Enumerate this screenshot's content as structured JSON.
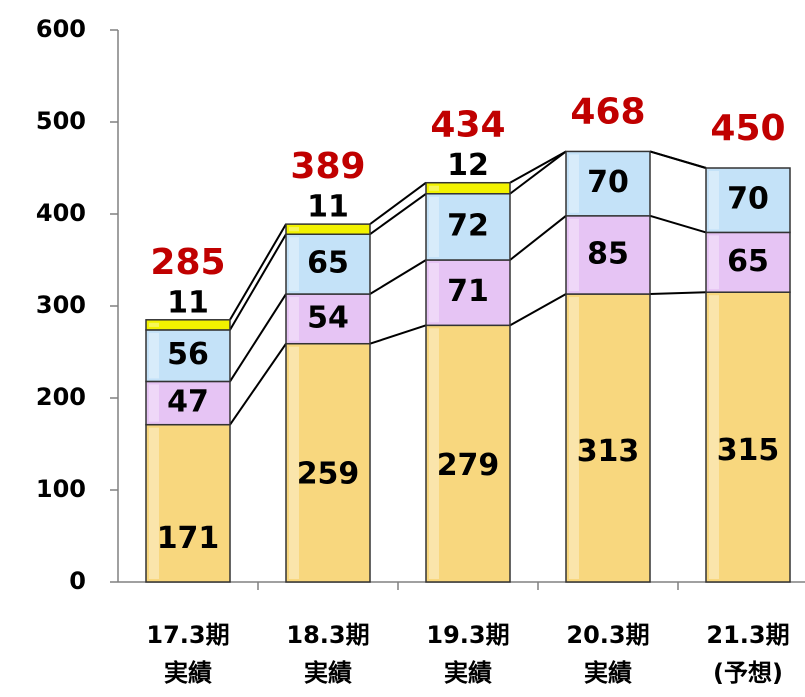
{
  "chart_data": {
    "type": "stacked_bar",
    "categories": [
      [
        "17.3期",
        "実績"
      ],
      [
        "18.3期",
        "実績"
      ],
      [
        "19.3期",
        "実績"
      ],
      [
        "20.3期",
        "実績"
      ],
      [
        "21.3期",
        "(予想)"
      ]
    ],
    "series": [
      {
        "color": "#f8d77e",
        "values": [
          171,
          259,
          279,
          313,
          315
        ]
      },
      {
        "color": "#e6c4f4",
        "values": [
          47,
          54,
          71,
          85,
          65
        ]
      },
      {
        "color": "#c4e2f8",
        "values": [
          56,
          65,
          72,
          70,
          70
        ]
      },
      {
        "color": "#f2f200",
        "values": [
          11,
          11,
          12,
          null,
          null
        ]
      }
    ],
    "totals": [
      285,
      389,
      434,
      468,
      450
    ],
    "totals_color": "#c00000",
    "ylim": [
      0,
      600
    ],
    "yticks": [
      0,
      100,
      200,
      300,
      400,
      500,
      600
    ]
  }
}
